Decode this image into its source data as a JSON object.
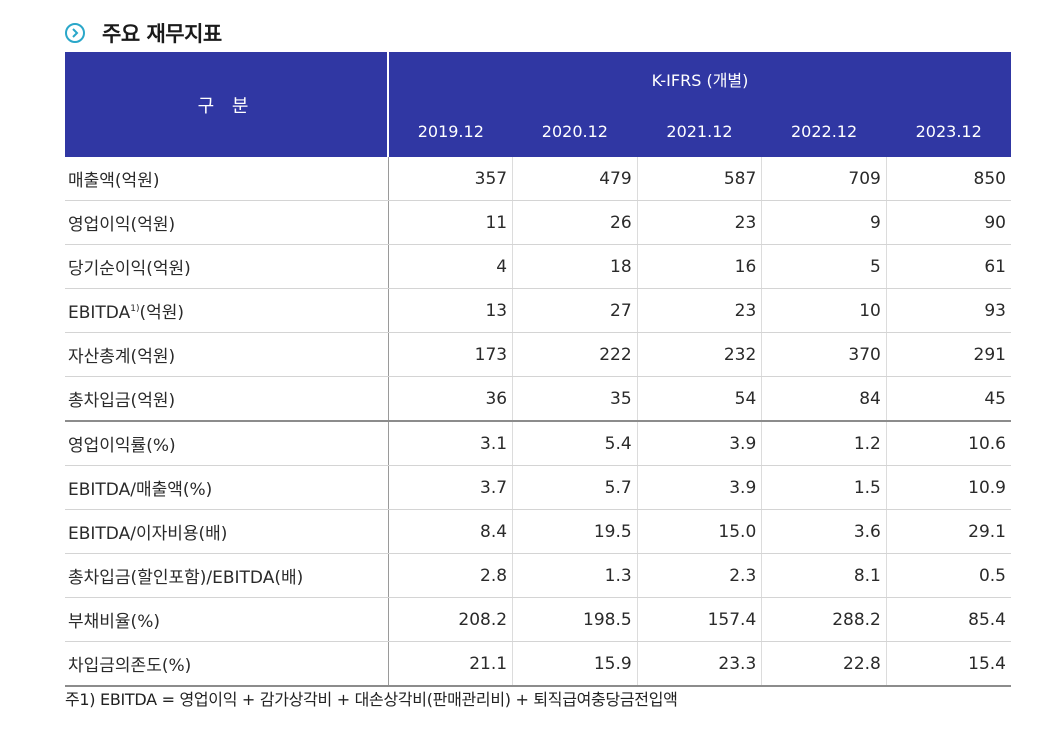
{
  "section_title": "주요 재무지표",
  "icon": "chevron-right-circle-icon",
  "colors": {
    "header_bg": "#3037a3",
    "accent": "#2aa7c9"
  },
  "table": {
    "corner_label": "구 분",
    "group_header": "K-IFRS (개별)",
    "years": [
      "2019.12",
      "2020.12",
      "2021.12",
      "2022.12",
      "2023.12"
    ],
    "rows": [
      {
        "label": "매출액(억원)",
        "values": [
          "357",
          "479",
          "587",
          "709",
          "850"
        ]
      },
      {
        "label": "영업이익(억원)",
        "values": [
          "11",
          "26",
          "23",
          "9",
          "90"
        ]
      },
      {
        "label": "당기순이익(억원)",
        "values": [
          "4",
          "18",
          "16",
          "5",
          "61"
        ]
      },
      {
        "label": "EBITDA",
        "sup": "1)",
        "label_suffix": "(억원)",
        "values": [
          "13",
          "27",
          "23",
          "10",
          "93"
        ]
      },
      {
        "label": "자산총계(억원)",
        "values": [
          "173",
          "222",
          "232",
          "370",
          "291"
        ]
      },
      {
        "label": "총차입금(억원)",
        "values": [
          "36",
          "35",
          "54",
          "84",
          "45"
        ]
      },
      {
        "label": "영업이익률(%)",
        "values": [
          "3.1",
          "5.4",
          "3.9",
          "1.2",
          "10.6"
        ]
      },
      {
        "label": "EBITDA/매출액(%)",
        "values": [
          "3.7",
          "5.7",
          "3.9",
          "1.5",
          "10.9"
        ]
      },
      {
        "label": "EBITDA/이자비용(배)",
        "values": [
          "8.4",
          "19.5",
          "15.0",
          "3.6",
          "29.1"
        ]
      },
      {
        "label": "총차입금(할인포함)/EBITDA(배)",
        "values": [
          "2.8",
          "1.3",
          "2.3",
          "8.1",
          "0.5"
        ]
      },
      {
        "label": "부채비율(%)",
        "values": [
          "208.2",
          "198.5",
          "157.4",
          "288.2",
          "85.4"
        ]
      },
      {
        "label": "차입금의존도(%)",
        "values": [
          "21.1",
          "15.9",
          "23.3",
          "22.8",
          "15.4"
        ]
      }
    ]
  },
  "footnote": "주1) EBITDA = 영업이익 + 감가상각비 + 대손상각비(판매관리비) + 퇴직급여충당금전입액"
}
